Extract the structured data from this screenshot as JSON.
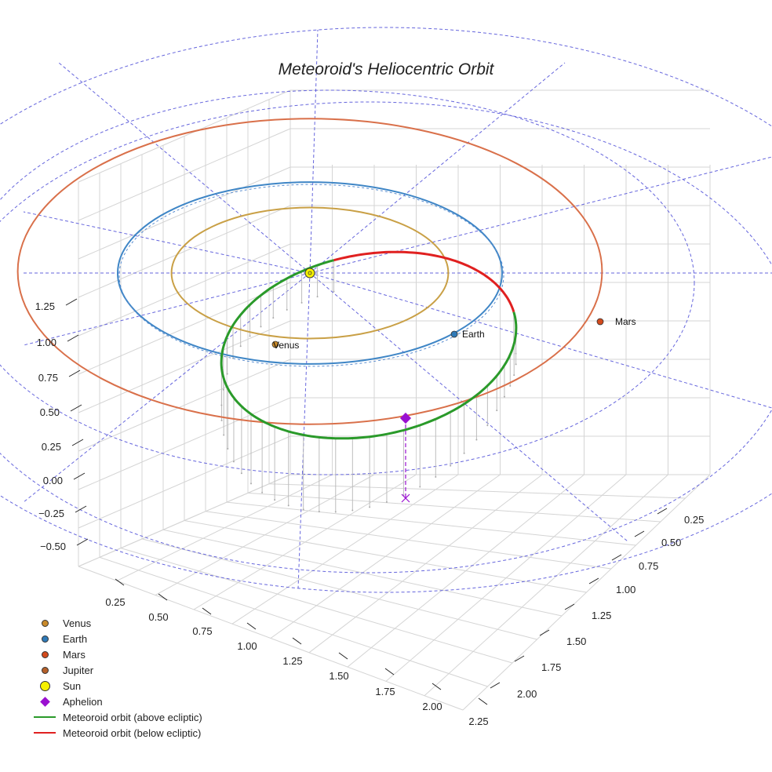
{
  "chart_data": {
    "type": "line",
    "projection": "3d",
    "title": "Meteoroid's Heliocentric Orbit",
    "xlabel": "",
    "ylabel": "",
    "zlabel": "",
    "x_ticks": [
      "0.25",
      "0.50",
      "0.75",
      "1.00",
      "1.25",
      "1.50",
      "1.75",
      "2.00",
      "2.25"
    ],
    "y_ticks": [
      "0.25",
      "0.50",
      "0.75",
      "1.00",
      "1.25",
      "1.50",
      "1.75",
      "2.00"
    ],
    "z_ticks": [
      "1.25",
      "1.00",
      "0.75",
      "0.50",
      "0.25",
      "0.00",
      "−0.25",
      "−0.50"
    ],
    "xlim": [
      0.0,
      2.3
    ],
    "ylim": [
      0.0,
      2.1
    ],
    "zlim": [
      -0.6,
      1.4
    ],
    "grid": true,
    "legend_position": "bottom-left",
    "planets": [
      {
        "name": "Venus",
        "orbit_radius_au": 0.72,
        "color": "#c9a046",
        "marker_color": "#c98a2a"
      },
      {
        "name": "Earth",
        "orbit_radius_au": 1.0,
        "color": "#3f86c6",
        "marker_color": "#2f7ab8"
      },
      {
        "name": "Mars",
        "orbit_radius_au": 1.52,
        "color": "#d9704a",
        "marker_color": "#d24a1c"
      },
      {
        "name": "Jupiter",
        "orbit_radius_au": 5.2,
        "color": "#6666dd",
        "marker_color": "#b5602a"
      }
    ],
    "sun": {
      "name": "Sun",
      "color": "#f5f000"
    },
    "meteoroid": {
      "perihelion_au": 0.05,
      "aphelion_au": 1.15,
      "segments": [
        {
          "name": "Meteoroid orbit (above ecliptic)",
          "color": "#2a9a2a"
        },
        {
          "name": "Meteoroid orbit (below ecliptic)",
          "color": "#e02020"
        }
      ],
      "aphelion_marker": {
        "name": "Aphelion",
        "color": "#9a10d0"
      }
    },
    "series": [
      {
        "name": "Venus",
        "symbol": "dot",
        "color": "#c98a2a"
      },
      {
        "name": "Earth",
        "symbol": "dot",
        "color": "#2f7ab8"
      },
      {
        "name": "Mars",
        "symbol": "dot",
        "color": "#d24a1c"
      },
      {
        "name": "Jupiter",
        "symbol": "dot",
        "color": "#b5602a"
      },
      {
        "name": "Sun",
        "symbol": "sun",
        "color": "#f5f000"
      },
      {
        "name": "Aphelion",
        "symbol": "diamond",
        "color": "#9a10d0"
      },
      {
        "name": "Meteoroid orbit (above ecliptic)",
        "symbol": "line",
        "color": "#2a9a2a"
      },
      {
        "name": "Meteoroid orbit (below ecliptic)",
        "symbol": "line",
        "color": "#e02020"
      }
    ]
  }
}
